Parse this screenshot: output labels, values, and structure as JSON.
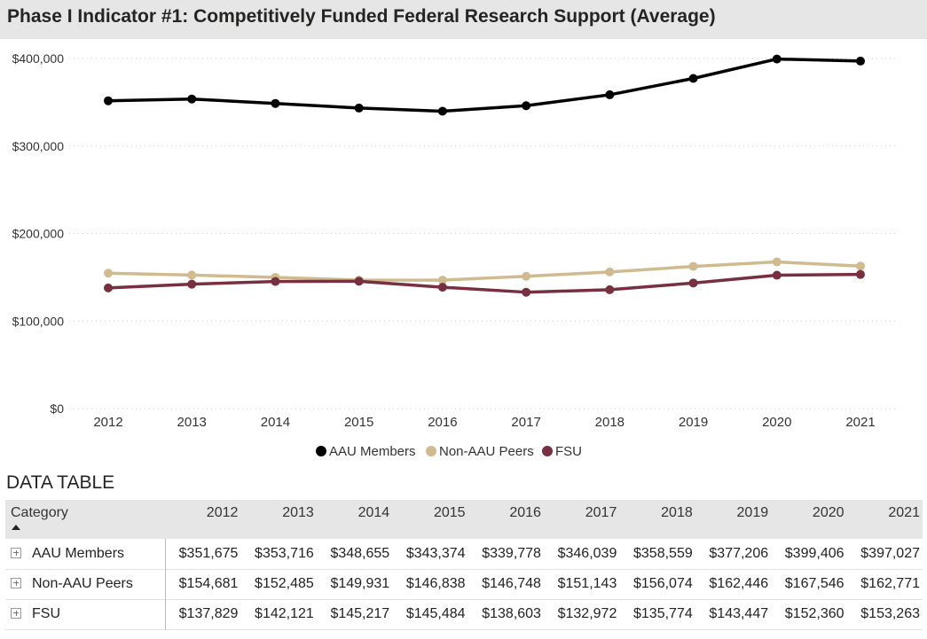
{
  "title": "Phase I Indicator #1: Competitively Funded Federal Research Support (Average)",
  "chart_data": {
    "type": "line",
    "title": "Phase I Indicator #1: Competitively Funded Federal Research Support (Average)",
    "x": [
      "2012",
      "2013",
      "2014",
      "2015",
      "2016",
      "2017",
      "2018",
      "2019",
      "2020",
      "2021"
    ],
    "ylim": [
      0,
      400000
    ],
    "yticks": [
      0,
      100000,
      200000,
      300000,
      400000
    ],
    "ytick_labels": [
      "$0",
      "$100,000",
      "$200,000",
      "$300,000",
      "$400,000"
    ],
    "grid": true,
    "legend_position": "bottom-center",
    "series": [
      {
        "name": "AAU Members",
        "color": "#000000",
        "values": [
          351675,
          353716,
          348655,
          343374,
          339778,
          346039,
          358559,
          377206,
          399406,
          397027
        ]
      },
      {
        "name": "Non-AAU Peers",
        "color": "#cfbb8f",
        "values": [
          154681,
          152485,
          149931,
          146838,
          146748,
          151143,
          156074,
          162446,
          167546,
          162771
        ]
      },
      {
        "name": "FSU",
        "color": "#782f40",
        "values": [
          137829,
          142121,
          145217,
          145484,
          138603,
          132972,
          135774,
          143447,
          152360,
          153263
        ]
      }
    ]
  },
  "table": {
    "section_title": "DATA TABLE",
    "category_header": "Category",
    "years": [
      "2012",
      "2013",
      "2014",
      "2015",
      "2016",
      "2017",
      "2018",
      "2019",
      "2020",
      "2021"
    ],
    "rows": [
      {
        "category": "AAU Members",
        "values": [
          "$351,675",
          "$353,716",
          "$348,655",
          "$343,374",
          "$339,778",
          "$346,039",
          "$358,559",
          "$377,206",
          "$399,406",
          "$397,027"
        ]
      },
      {
        "category": "Non-AAU Peers",
        "values": [
          "$154,681",
          "$152,485",
          "$149,931",
          "$146,838",
          "$146,748",
          "$151,143",
          "$156,074",
          "$162,446",
          "$167,546",
          "$162,771"
        ]
      },
      {
        "category": "FSU",
        "values": [
          "$137,829",
          "$142,121",
          "$145,217",
          "$145,484",
          "$138,603",
          "$132,972",
          "$135,774",
          "$143,447",
          "$152,360",
          "$153,263"
        ]
      }
    ]
  }
}
